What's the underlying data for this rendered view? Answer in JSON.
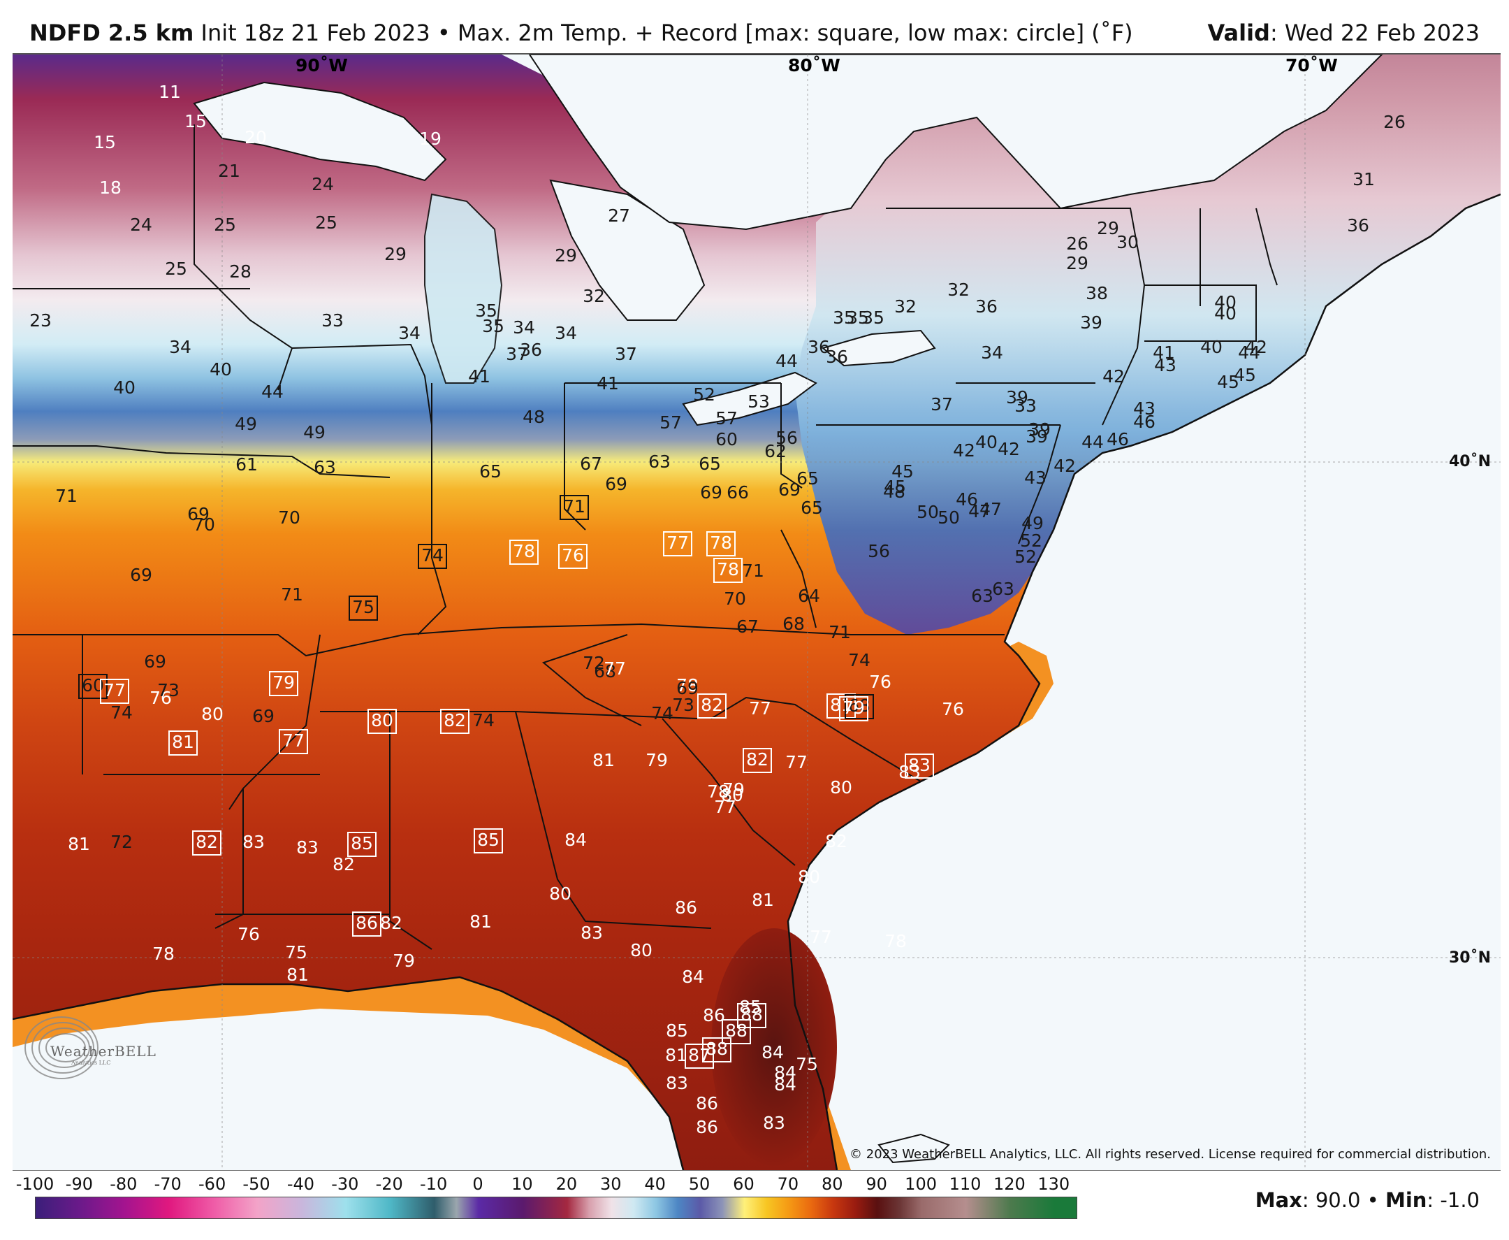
{
  "header": {
    "model": "NDFD 2.5 km",
    "init": "Init 18z 21 Feb 2023",
    "separator": "•",
    "product": "Max. 2m Temp. + Record [max: square, low max: circle] (˚F)",
    "valid_label": "Valid",
    "valid_value": ": Wed 22 Feb 2023"
  },
  "map": {
    "lon_labels": [
      "90˚W",
      "80˚W",
      "70˚W"
    ],
    "lat_labels": [
      "40˚N",
      "30˚N"
    ],
    "copyright": "© 2023 WeatherBELL Analytics, LLC. All rights reserved. License required for commercial distribution.",
    "logo_text": "WeatherBELL",
    "logo_sub": "Analytics LLC",
    "logo_icon": "swirl-logo-icon",
    "land_color_warm": "#d8541a",
    "land_color_hot": "#8a1c12",
    "land_color_cold": "#e7c5cf",
    "ocean_color": "#f3f8fb",
    "record_marker": "square",
    "values": [
      {
        "v": "11",
        "rec": false
      },
      {
        "v": "15",
        "rec": false
      },
      {
        "v": "15",
        "rec": false
      },
      {
        "v": "20",
        "rec": false
      },
      {
        "v": "19",
        "rec": false
      },
      {
        "v": "18",
        "rec": false
      },
      {
        "v": "21",
        "rec": false
      },
      {
        "v": "24",
        "rec": false
      },
      {
        "v": "24",
        "rec": false
      },
      {
        "v": "25",
        "rec": false
      },
      {
        "v": "25",
        "rec": false
      },
      {
        "v": "27",
        "rec": false
      },
      {
        "v": "29",
        "rec": false
      },
      {
        "v": "29",
        "rec": false
      },
      {
        "v": "25",
        "rec": false
      },
      {
        "v": "28",
        "rec": false
      },
      {
        "v": "23",
        "rec": false
      },
      {
        "v": "33",
        "rec": false
      },
      {
        "v": "34",
        "rec": false
      },
      {
        "v": "32",
        "rec": false
      },
      {
        "v": "34",
        "rec": false
      },
      {
        "v": "35",
        "rec": false
      },
      {
        "v": "35",
        "rec": false
      },
      {
        "v": "34",
        "rec": false
      },
      {
        "v": "34",
        "rec": false
      },
      {
        "v": "35",
        "rec": false
      },
      {
        "v": "35",
        "rec": false
      },
      {
        "v": "37",
        "rec": false
      },
      {
        "v": "36",
        "rec": false
      },
      {
        "v": "37",
        "rec": false
      },
      {
        "v": "40",
        "rec": false
      },
      {
        "v": "40",
        "rec": false
      },
      {
        "v": "44",
        "rec": false
      },
      {
        "v": "41",
        "rec": false
      },
      {
        "v": "41",
        "rec": false
      },
      {
        "v": "49",
        "rec": false
      },
      {
        "v": "49",
        "rec": false
      },
      {
        "v": "48",
        "rec": false
      },
      {
        "v": "52",
        "rec": false
      },
      {
        "v": "57",
        "rec": false
      },
      {
        "v": "57",
        "rec": false
      },
      {
        "v": "60",
        "rec": false
      },
      {
        "v": "53",
        "rec": false
      },
      {
        "v": "56",
        "rec": false
      },
      {
        "v": "44",
        "rec": false
      },
      {
        "v": "36",
        "rec": false
      },
      {
        "v": "36",
        "rec": false
      },
      {
        "v": "35",
        "rec": false
      },
      {
        "v": "32",
        "rec": false
      },
      {
        "v": "32",
        "rec": false
      },
      {
        "v": "36",
        "rec": false
      },
      {
        "v": "34",
        "rec": false
      },
      {
        "v": "26",
        "rec": false
      },
      {
        "v": "29",
        "rec": false
      },
      {
        "v": "30",
        "rec": false
      },
      {
        "v": "29",
        "rec": false
      },
      {
        "v": "38",
        "rec": false
      },
      {
        "v": "39",
        "rec": false
      },
      {
        "v": "26",
        "rec": false
      },
      {
        "v": "31",
        "rec": false
      },
      {
        "v": "36",
        "rec": false
      },
      {
        "v": "40",
        "rec": false
      },
      {
        "v": "40",
        "rec": false
      },
      {
        "v": "42",
        "rec": false
      },
      {
        "v": "45",
        "rec": false
      },
      {
        "v": "44",
        "rec": false
      },
      {
        "v": "41",
        "rec": false
      },
      {
        "v": "43",
        "rec": false
      },
      {
        "v": "40",
        "rec": false
      },
      {
        "v": "45",
        "rec": false
      },
      {
        "v": "42",
        "rec": false
      },
      {
        "v": "43",
        "rec": false
      },
      {
        "v": "46",
        "rec": false
      },
      {
        "v": "37",
        "rec": false
      },
      {
        "v": "39",
        "rec": false
      },
      {
        "v": "33",
        "rec": false
      },
      {
        "v": "39",
        "rec": false
      },
      {
        "v": "39",
        "rec": false
      },
      {
        "v": "44",
        "rec": false
      },
      {
        "v": "46",
        "rec": false
      },
      {
        "v": "42",
        "rec": false
      },
      {
        "v": "40",
        "rec": false
      },
      {
        "v": "42",
        "rec": false
      },
      {
        "v": "42",
        "rec": false
      },
      {
        "v": "43",
        "rec": false
      },
      {
        "v": "45",
        "rec": false
      },
      {
        "v": "61",
        "rec": false
      },
      {
        "v": "63",
        "rec": false
      },
      {
        "v": "65",
        "rec": false
      },
      {
        "v": "67",
        "rec": false
      },
      {
        "v": "63",
        "rec": false
      },
      {
        "v": "65",
        "rec": false
      },
      {
        "v": "62",
        "rec": false
      },
      {
        "v": "65",
        "rec": false
      },
      {
        "v": "45",
        "rec": false
      },
      {
        "v": "48",
        "rec": false
      },
      {
        "v": "71",
        "rec": false
      },
      {
        "v": "69",
        "rec": false
      },
      {
        "v": "70",
        "rec": false
      },
      {
        "v": "70",
        "rec": false
      },
      {
        "v": "69",
        "rec": false
      },
      {
        "v": "69",
        "rec": false
      },
      {
        "v": "66",
        "rec": false
      },
      {
        "v": "69",
        "rec": false
      },
      {
        "v": "65",
        "rec": false
      },
      {
        "v": "50",
        "rec": false
      },
      {
        "v": "50",
        "rec": false
      },
      {
        "v": "46",
        "rec": false
      },
      {
        "v": "47",
        "rec": false
      },
      {
        "v": "47",
        "rec": false
      },
      {
        "v": "49",
        "rec": false
      },
      {
        "v": "52",
        "rec": false
      },
      {
        "v": "52",
        "rec": false
      },
      {
        "v": "56",
        "rec": false
      },
      {
        "v": "71",
        "rec": true
      },
      {
        "v": "74",
        "rec": true
      },
      {
        "v": "78",
        "rec": true
      },
      {
        "v": "76",
        "rec": true
      },
      {
        "v": "77",
        "rec": true
      },
      {
        "v": "78",
        "rec": true
      },
      {
        "v": "71",
        "rec": false
      },
      {
        "v": "78",
        "rec": true
      },
      {
        "v": "69",
        "rec": false
      },
      {
        "v": "71",
        "rec": false
      },
      {
        "v": "75",
        "rec": true
      },
      {
        "v": "70",
        "rec": false
      },
      {
        "v": "67",
        "rec": false
      },
      {
        "v": "68",
        "rec": false
      },
      {
        "v": "64",
        "rec": false
      },
      {
        "v": "63",
        "rec": false
      },
      {
        "v": "63",
        "rec": false
      },
      {
        "v": "71",
        "rec": false
      },
      {
        "v": "78",
        "rec": false
      },
      {
        "v": "72",
        "rec": false
      },
      {
        "v": "68",
        "rec": false
      },
      {
        "v": "69",
        "rec": false
      },
      {
        "v": "79",
        "rec": true
      },
      {
        "v": "76",
        "rec": false
      },
      {
        "v": "77",
        "rec": false
      },
      {
        "v": "69",
        "rec": false
      },
      {
        "v": "74",
        "rec": false
      },
      {
        "v": "60",
        "rec": true
      },
      {
        "v": "77",
        "rec": true
      },
      {
        "v": "73",
        "rec": false
      },
      {
        "v": "74",
        "rec": false
      },
      {
        "v": "73",
        "rec": false
      },
      {
        "v": "74",
        "rec": false
      },
      {
        "v": "81",
        "rec": true
      },
      {
        "v": "76",
        "rec": false
      },
      {
        "v": "68",
        "rec": true
      },
      {
        "v": "76",
        "rec": false
      },
      {
        "v": "77",
        "rec": false
      },
      {
        "v": "79",
        "rec": true
      },
      {
        "v": "80",
        "rec": false
      },
      {
        "v": "69",
        "rec": false
      },
      {
        "v": "74",
        "rec": false
      },
      {
        "v": "77",
        "rec": true
      },
      {
        "v": "81",
        "rec": true
      },
      {
        "v": "80",
        "rec": true
      },
      {
        "v": "82",
        "rec": true
      },
      {
        "v": "82",
        "rec": true
      },
      {
        "v": "79",
        "rec": false
      },
      {
        "v": "78",
        "rec": false
      },
      {
        "v": "81",
        "rec": false
      },
      {
        "v": "82",
        "rec": true
      },
      {
        "v": "83",
        "rec": true
      },
      {
        "v": "83",
        "rec": false
      },
      {
        "v": "79",
        "rec": false
      },
      {
        "v": "77",
        "rec": false
      },
      {
        "v": "77",
        "rec": false
      },
      {
        "v": "80",
        "rec": false
      },
      {
        "v": "80",
        "rec": false
      },
      {
        "v": "81",
        "rec": false
      },
      {
        "v": "72",
        "rec": false
      },
      {
        "v": "82",
        "rec": true
      },
      {
        "v": "83",
        "rec": false
      },
      {
        "v": "83",
        "rec": false
      },
      {
        "v": "85",
        "rec": true
      },
      {
        "v": "85",
        "rec": true
      },
      {
        "v": "84",
        "rec": false
      },
      {
        "v": "82",
        "rec": false
      },
      {
        "v": "80",
        "rec": false
      },
      {
        "v": "81",
        "rec": false
      },
      {
        "v": "80",
        "rec": false
      },
      {
        "v": "82",
        "rec": false
      },
      {
        "v": "86",
        "rec": true
      },
      {
        "v": "82",
        "rec": false
      },
      {
        "v": "81",
        "rec": false
      },
      {
        "v": "83",
        "rec": false
      },
      {
        "v": "77",
        "rec": false
      },
      {
        "v": "76",
        "rec": false
      },
      {
        "v": "75",
        "rec": false
      },
      {
        "v": "79",
        "rec": false
      },
      {
        "v": "86",
        "rec": false
      },
      {
        "v": "80",
        "rec": false
      },
      {
        "v": "78",
        "rec": false
      },
      {
        "v": "81",
        "rec": false
      },
      {
        "v": "84",
        "rec": false
      },
      {
        "v": "85",
        "rec": false
      },
      {
        "v": "86",
        "rec": false
      },
      {
        "v": "88",
        "rec": true
      },
      {
        "v": "85",
        "rec": false
      },
      {
        "v": "88",
        "rec": true
      },
      {
        "v": "81",
        "rec": false
      },
      {
        "v": "87",
        "rec": true
      },
      {
        "v": "88",
        "rec": true
      },
      {
        "v": "84",
        "rec": false
      },
      {
        "v": "84",
        "rec": false
      },
      {
        "v": "84",
        "rec": false
      },
      {
        "v": "83",
        "rec": false
      },
      {
        "v": "86",
        "rec": false
      },
      {
        "v": "86",
        "rec": false
      },
      {
        "v": "83",
        "rec": false
      },
      {
        "v": "75",
        "rec": false
      },
      {
        "v": "78",
        "rec": false
      }
    ]
  },
  "colorbar": {
    "ticks": [
      "-100",
      "-90",
      "-80",
      "-70",
      "-60",
      "-50",
      "-40",
      "-30",
      "-20",
      "-10",
      "0",
      "10",
      "20",
      "30",
      "40",
      "50",
      "60",
      "70",
      "80",
      "90",
      "100",
      "110",
      "120",
      "130"
    ],
    "min_value": -100,
    "max_value": 135,
    "stops": [
      [
        -100,
        "#3b1f7a"
      ],
      [
        -90,
        "#6b1a8a"
      ],
      [
        -80,
        "#a3148f"
      ],
      [
        -70,
        "#e0187f"
      ],
      [
        -60,
        "#ef5aa6"
      ],
      [
        -50,
        "#f3a3c8"
      ],
      [
        -40,
        "#c9b6dc"
      ],
      [
        -30,
        "#9ee0ec"
      ],
      [
        -20,
        "#4fb8c7"
      ],
      [
        -10,
        "#2f5d6b"
      ],
      [
        -5,
        "#9aa6ad"
      ],
      [
        0,
        "#5b2aa6"
      ],
      [
        10,
        "#5b1a6d"
      ],
      [
        20,
        "#a42840"
      ],
      [
        25,
        "#d8a0ad"
      ],
      [
        30,
        "#f0e2e8"
      ],
      [
        35,
        "#cfe9f2"
      ],
      [
        40,
        "#8ec7e3"
      ],
      [
        45,
        "#4d86c4"
      ],
      [
        50,
        "#5b5aa8"
      ],
      [
        55,
        "#8c93b8"
      ],
      [
        60,
        "#fff07a"
      ],
      [
        65,
        "#f7c623"
      ],
      [
        70,
        "#f59a14"
      ],
      [
        75,
        "#ea6a10"
      ],
      [
        80,
        "#c8380f"
      ],
      [
        85,
        "#9a1c10"
      ],
      [
        90,
        "#5a1010"
      ],
      [
        95,
        "#6b3535"
      ],
      [
        100,
        "#9a6b6b"
      ],
      [
        110,
        "#b58e8e"
      ],
      [
        120,
        "#4d7a4d"
      ],
      [
        130,
        "#1a7a3a"
      ]
    ],
    "max_label": "Max",
    "max_value_text": ": 90.0",
    "sep": " • ",
    "min_label": "Min",
    "min_value_text": ": -1.0"
  }
}
